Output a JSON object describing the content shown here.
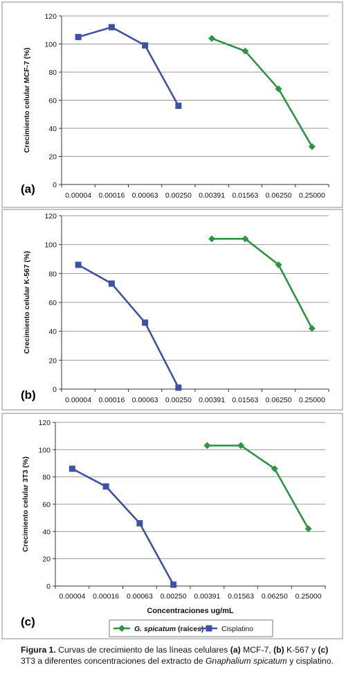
{
  "chart_data": [
    {
      "type": "line",
      "panel_label": "(a)",
      "ylabel": "Crecimiento celular MCF-7 (%)",
      "xlabel": "",
      "categories": [
        "0.00004",
        "0.00016",
        "0.00063",
        "0.00250",
        "0.00391",
        "0.01563",
        "0.06250",
        "0.25000"
      ],
      "ylim": [
        0,
        120
      ],
      "yticks": [
        "0",
        "20",
        "40",
        "60",
        "80",
        "100",
        "120"
      ],
      "grid": true,
      "series": [
        {
          "name": "Cisplatino",
          "color": "#3f51a3",
          "marker": "square",
          "values": [
            105,
            112,
            99,
            56,
            null,
            null,
            null,
            null
          ]
        },
        {
          "name": "G. spicatum (raíces)",
          "color": "#2e9444",
          "marker": "diamond",
          "values": [
            null,
            null,
            null,
            null,
            104,
            95,
            68,
            27
          ]
        }
      ]
    },
    {
      "type": "line",
      "panel_label": "(b)",
      "ylabel": "Crecimiento celular K-567 (%)",
      "xlabel": "",
      "categories": [
        "0.00004",
        "0.00016",
        "0.00063",
        "0.00250",
        "0.00391",
        "0.01563",
        "0.06250",
        "0.25000"
      ],
      "ylim": [
        0,
        120
      ],
      "yticks": [
        "0",
        "20",
        "40",
        "60",
        "80",
        "100",
        "120"
      ],
      "grid": true,
      "series": [
        {
          "name": "Cisplatino",
          "color": "#3f51a3",
          "marker": "square",
          "values": [
            86,
            73,
            46,
            1,
            null,
            null,
            null,
            null
          ]
        },
        {
          "name": "G. spicatum (raíces)",
          "color": "#2e9444",
          "marker": "diamond",
          "values": [
            null,
            null,
            null,
            null,
            104,
            104,
            86,
            42
          ]
        }
      ]
    },
    {
      "type": "line",
      "panel_label": "(c)",
      "ylabel": "Crecimiento celular 3T3 (%)",
      "xlabel": "Concentraciones ug/mL",
      "categories": [
        "0.00004",
        "0.00016",
        "0.00063",
        "0.00250",
        "0.00391",
        "0.01563",
        "0.06250",
        "0.25000"
      ],
      "ylim": [
        0,
        120
      ],
      "yticks": [
        "0",
        "20",
        "40",
        "60",
        "80",
        "100",
        "120"
      ],
      "grid": true,
      "legend": {
        "placement": "bottom",
        "entries": [
          {
            "label": "G. spicatum",
            "suffix": " (raíces)",
            "color": "#2e9444",
            "marker": "diamond"
          },
          {
            "label": "Cisplatino",
            "suffix": "",
            "color": "#3f51a3",
            "marker": "square"
          }
        ]
      },
      "series": [
        {
          "name": "Cisplatino",
          "color": "#3f51a3",
          "marker": "square",
          "values": [
            86,
            73,
            46,
            1,
            null,
            null,
            null,
            null
          ]
        },
        {
          "name": "G. spicatum (raíces)",
          "color": "#2e9444",
          "marker": "diamond",
          "values": [
            null,
            null,
            null,
            null,
            103,
            103,
            86,
            42
          ]
        }
      ]
    }
  ],
  "caption": {
    "figure": "Figura 1.",
    "t1": " Curvas de crecimiento de las líneas celulares ",
    "a": "(a)",
    "t2": " MCF-7, ",
    "b": "(b)",
    "t3": " K-567 y ",
    "c": "(c)",
    "t4": " 3T3 a diferentes concentraciones del extracto de ",
    "species": "Gnaphalium spicatum",
    "t5": " y cisplatino."
  }
}
